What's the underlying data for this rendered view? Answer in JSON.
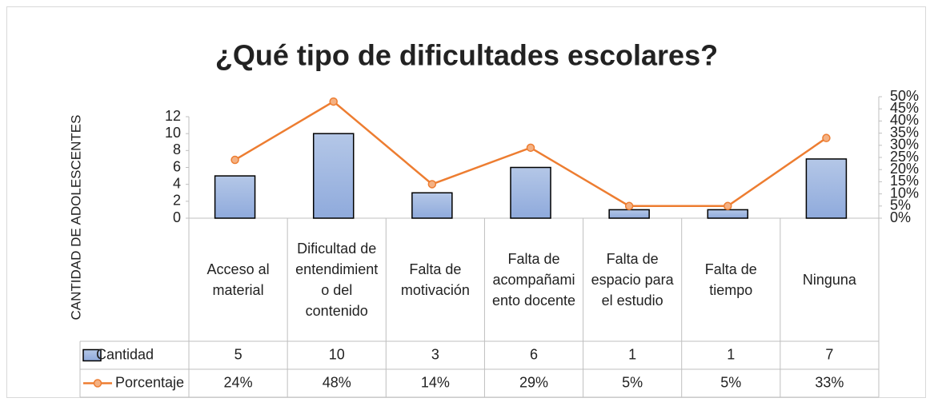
{
  "chart_data": {
    "type": "bar",
    "title": "¿Qué tipo de dificultades escolares?",
    "y_label": "CANTIDAD DE ADOLESCENTES",
    "categories": [
      "Acceso al material",
      "Dificultad de entendimiento del contenido",
      "Falta de motivación",
      "Falta de acompañamiento docente",
      "Falta de espacio para el estudio",
      "Falta de tiempo",
      "Ninguna"
    ],
    "series": [
      {
        "name": "Cantidad",
        "type": "bar",
        "color": "#8faadc",
        "values": [
          5,
          10,
          3,
          6,
          1,
          1,
          7
        ]
      },
      {
        "name": "Porcentaje",
        "type": "line",
        "axis": "y2",
        "color": "#ed7d31",
        "values": [
          24,
          48,
          14,
          29,
          5,
          5,
          33
        ],
        "value_labels": [
          "24%",
          "48%",
          "14%",
          "29%",
          "5%",
          "5%",
          "33%"
        ]
      }
    ],
    "ylim": [
      0,
      12
    ],
    "yticks": [
      0,
      2,
      4,
      6,
      8,
      10,
      12
    ],
    "y2lim": [
      0,
      50
    ],
    "y2ticks": [
      {
        "value": 0,
        "label": "0%"
      },
      {
        "value": 5,
        "label": "5%"
      },
      {
        "value": 10,
        "label": "10%"
      },
      {
        "value": 15,
        "label": "15%"
      },
      {
        "value": 20,
        "label": "20%"
      },
      {
        "value": 25,
        "label": "25%"
      },
      {
        "value": 30,
        "label": "30%"
      },
      {
        "value": 35,
        "label": "35%"
      },
      {
        "value": 40,
        "label": "40%"
      },
      {
        "value": 45,
        "label": "45%"
      },
      {
        "value": 50,
        "label": "50%"
      }
    ],
    "grid": false,
    "data_table": true
  }
}
